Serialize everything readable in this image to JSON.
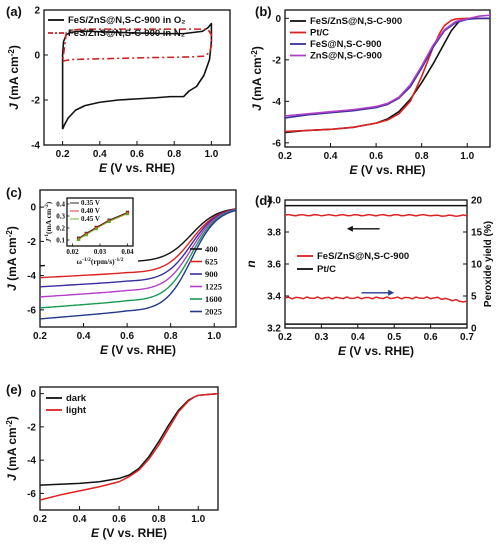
{
  "chart_data": [
    {
      "panel": "(a)",
      "type": "line",
      "xlabel_var": "E",
      "xlabel_rest": " (V vs. RHE)",
      "ylabel_var": "J",
      "ylabel_rest": " (mA cm",
      "ylabel_sup": "-2",
      "ylabel_end": ")",
      "xlim": [
        0.1,
        1.1
      ],
      "ylim": [
        -4,
        2
      ],
      "xticks": [
        0.2,
        0.4,
        0.6,
        0.8,
        1.0
      ],
      "xtick_labels": [
        "0.2",
        "0.4",
        "0.6",
        "0.8",
        "1.0"
      ],
      "yticks": [
        -4,
        -2,
        0,
        2
      ],
      "ytick_labels": [
        "-4",
        "-2",
        "0",
        "2"
      ],
      "legend_position": "top-left",
      "series": [
        {
          "name": "FeS/ZnS@N,S-C-900 in O₂",
          "color": "#111111",
          "style": "solid",
          "x": [
            0.2,
            0.21,
            0.23,
            0.27,
            0.32,
            0.4,
            0.5,
            0.6,
            0.7,
            0.78,
            0.85,
            0.88,
            0.92,
            0.96,
            0.99,
            1.0,
            1.0,
            0.98,
            0.95,
            0.9,
            0.85,
            0.75,
            0.6,
            0.45,
            0.35,
            0.28,
            0.24,
            0.22,
            0.205,
            0.2,
            0.2
          ],
          "y": [
            -3.3,
            -3.1,
            -2.8,
            -2.45,
            -2.25,
            -2.1,
            -2.0,
            -1.95,
            -1.9,
            -1.85,
            -1.85,
            -1.6,
            -1.4,
            -0.9,
            -0.2,
            0.6,
            1.4,
            1.2,
            1.05,
            1.0,
            0.95,
            0.95,
            0.98,
            1.02,
            1.05,
            1.05,
            1.0,
            0.9,
            0.6,
            0.0,
            -3.3
          ]
        },
        {
          "name": "FeS/ZnS@N,S-C-900 in N₂",
          "color": "#cc2222",
          "style": "dashdot",
          "x": [
            0.2,
            0.21,
            0.25,
            0.35,
            0.5,
            0.65,
            0.8,
            0.9,
            0.96,
            0.99,
            1.0,
            1.0,
            0.98,
            0.95,
            0.85,
            0.7,
            0.55,
            0.4,
            0.3,
            0.25,
            0.22,
            0.2
          ],
          "y": [
            -0.3,
            -0.25,
            -0.2,
            -0.18,
            -0.15,
            -0.12,
            -0.1,
            -0.08,
            -0.05,
            0.1,
            0.4,
            0.9,
            1.15,
            1.15,
            1.15,
            1.15,
            1.15,
            1.15,
            1.15,
            1.1,
            1.0,
            -0.3
          ]
        }
      ]
    },
    {
      "panel": "(b)",
      "type": "line",
      "xlabel_var": "E",
      "xlabel_rest": " (V vs. RHE)",
      "ylabel_var": "J",
      "ylabel_rest": " (mA cm",
      "ylabel_sup": "-2",
      "ylabel_end": ")",
      "xlim": [
        0.2,
        1.1
      ],
      "ylim": [
        -6.2,
        0.4
      ],
      "xticks": [
        0.2,
        0.4,
        0.6,
        0.8,
        1.0
      ],
      "xtick_labels": [
        "0.2",
        "0.4",
        "0.6",
        "0.8",
        "1.0"
      ],
      "yticks": [
        -6,
        -4,
        -2,
        0
      ],
      "ytick_labels": [
        "-6",
        "-4",
        "-2",
        "0"
      ],
      "legend_position": "top-left",
      "series": [
        {
          "name": "FeS/ZnS@N,S-C-900",
          "color": "#111111",
          "x": [
            0.2,
            0.3,
            0.4,
            0.5,
            0.6,
            0.65,
            0.7,
            0.75,
            0.8,
            0.85,
            0.9,
            0.93,
            0.96,
            0.98,
            1.0,
            1.05,
            1.1
          ],
          "y": [
            -5.5,
            -5.4,
            -5.35,
            -5.25,
            -5.05,
            -4.85,
            -4.5,
            -3.9,
            -3.1,
            -2.2,
            -1.2,
            -0.6,
            -0.2,
            -0.05,
            0.0,
            0.0,
            0.0
          ]
        },
        {
          "name": "Pt/C",
          "color": "#dd2222",
          "x": [
            0.2,
            0.3,
            0.4,
            0.5,
            0.6,
            0.65,
            0.7,
            0.75,
            0.8,
            0.85,
            0.88,
            0.9,
            0.93,
            0.95,
            1.0,
            1.05,
            1.1
          ],
          "y": [
            -5.45,
            -5.4,
            -5.35,
            -5.25,
            -5.05,
            -4.9,
            -4.6,
            -4.0,
            -2.8,
            -1.4,
            -0.7,
            -0.35,
            -0.1,
            -0.03,
            0.0,
            0.0,
            0.0
          ]
        },
        {
          "name": "FeS@N,S-C-900",
          "color": "#3b2f9e",
          "x": [
            0.2,
            0.3,
            0.4,
            0.5,
            0.6,
            0.65,
            0.7,
            0.75,
            0.8,
            0.85,
            0.9,
            0.95,
            1.0,
            1.05,
            1.1
          ],
          "y": [
            -4.8,
            -4.65,
            -4.55,
            -4.45,
            -4.3,
            -4.15,
            -3.85,
            -3.3,
            -2.4,
            -1.4,
            -0.6,
            -0.2,
            -0.05,
            0.0,
            0.0
          ]
        },
        {
          "name": "ZnS@N,S-C-900",
          "color": "#b040c8",
          "x": [
            0.2,
            0.3,
            0.4,
            0.5,
            0.6,
            0.65,
            0.7,
            0.75,
            0.8,
            0.85,
            0.9,
            0.95,
            1.0,
            1.05,
            1.1
          ],
          "y": [
            -4.7,
            -4.6,
            -4.5,
            -4.4,
            -4.25,
            -4.1,
            -3.8,
            -3.2,
            -2.3,
            -1.3,
            -0.55,
            -0.15,
            -0.02,
            0.1,
            0.15
          ]
        }
      ]
    },
    {
      "panel": "(c)",
      "type": "line",
      "xlabel_var": "E",
      "xlabel_rest": " (V vs. RHE)",
      "ylabel_var": "J",
      "ylabel_rest": " (mA cm",
      "ylabel_sup": "-2",
      "ylabel_end": ")",
      "xlim": [
        0.2,
        1.1
      ],
      "ylim": [
        -7,
        1
      ],
      "xticks": [
        0.2,
        0.4,
        0.6,
        0.8,
        1.0
      ],
      "xtick_labels": [
        "0.2",
        "0.4",
        "0.6",
        "0.8",
        "1.0"
      ],
      "yticks": [
        -6,
        -4,
        -2,
        0
      ],
      "ytick_labels": [
        "-6",
        "-4",
        "-2",
        "0"
      ],
      "legend_position": "bottom-right",
      "series": [
        {
          "name": "400",
          "color": "#111111",
          "plateau": -3.2
        },
        {
          "name": "625",
          "color": "#dd2222",
          "plateau": -3.85
        },
        {
          "name": "900",
          "color": "#3b2f9e",
          "plateau": -4.35
        },
        {
          "name": "1225",
          "color": "#b040c8",
          "plateau": -4.9
        },
        {
          "name": "1600",
          "color": "#1a9a55",
          "plateau": -5.5
        },
        {
          "name": "2025",
          "color": "#223a88",
          "plateau": -6.1
        }
      ],
      "inset": {
        "xlabel": "ω",
        "xlabel_sup": "-1/2",
        "xlabel_rest": "(rpm/s)",
        "xlabel_sup2": "-1/2",
        "ylabel": "J",
        "ylabel_sup": "-1",
        "ylabel_rest": "(mA cm",
        "ylabel_sup2": "-2",
        "ylabel_end": ")",
        "xlim": [
          0.018,
          0.042
        ],
        "ylim": [
          0.05,
          0.45
        ],
        "xticks": [
          0.02,
          0.03,
          0.04
        ],
        "xtick_labels": [
          "0.02",
          "0.03",
          "0.04"
        ],
        "yticks": [
          0.1,
          0.2,
          0.3,
          0.4
        ],
        "ytick_labels": [
          "0.1",
          "0.2",
          "0.3",
          "0.4"
        ],
        "series": [
          {
            "name": "0.35 V",
            "color": "#111111",
            "marker": "square",
            "x": [
              0.0222,
              0.025,
              0.0286,
              0.0333,
              0.04
            ],
            "y": [
              0.115,
              0.155,
              0.205,
              0.265,
              0.33
            ]
          },
          {
            "name": "0.40 V",
            "color": "#dd2222",
            "marker": "circle",
            "x": [
              0.0222,
              0.025,
              0.0286,
              0.0333,
              0.04
            ],
            "y": [
              0.11,
              0.15,
              0.2,
              0.26,
              0.325
            ]
          },
          {
            "name": "0.45 V",
            "color": "#66aa22",
            "marker": "triangle",
            "x": [
              0.0222,
              0.025,
              0.0286,
              0.0333,
              0.04
            ],
            "y": [
              0.105,
              0.145,
              0.195,
              0.255,
              0.32
            ]
          }
        ]
      }
    },
    {
      "panel": "(d)",
      "type": "line",
      "xlabel_var": "E",
      "xlabel_rest": " (V vs. RHE)",
      "ylabel_var": "n",
      "ylabel2": "Peroxide yield (%)",
      "xlim": [
        0.2,
        0.7
      ],
      "ylim": [
        3.2,
        4.0
      ],
      "y2lim": [
        0,
        20
      ],
      "xticks": [
        0.2,
        0.3,
        0.4,
        0.5,
        0.6,
        0.7
      ],
      "xtick_labels": [
        "0.2",
        "0.3",
        "0.4",
        "0.5",
        "0.6",
        "0.7"
      ],
      "yticks": [
        3.2,
        3.4,
        3.6,
        3.8,
        4.0
      ],
      "ytick_labels": [
        "3.2",
        "3.4",
        "3.6",
        "3.8",
        "4.0"
      ],
      "y2ticks": [
        0,
        5,
        10,
        15,
        20
      ],
      "y2tick_labels": [
        "0",
        "5",
        "10",
        "15",
        "20"
      ],
      "legend_position": "center-left",
      "series": [
        {
          "name": "FeS/ZnS@N,S-C-900",
          "color": "#dd2222",
          "n_value": 3.905,
          "peroxide": 4.7
        },
        {
          "name": "Pt/C",
          "color": "#111111",
          "n_value": 3.965,
          "peroxide": 0.6
        }
      ]
    },
    {
      "panel": "(e)",
      "type": "line",
      "xlabel_var": "E",
      "xlabel_rest": " (V vs. RHE)",
      "ylabel_var": "J",
      "ylabel_rest": " (mA cm",
      "ylabel_sup": "-2",
      "ylabel_end": ")",
      "xlim": [
        0.2,
        1.1
      ],
      "ylim": [
        -7,
        0.4
      ],
      "xticks": [
        0.2,
        0.4,
        0.6,
        0.8,
        1.0
      ],
      "xtick_labels": [
        "0.2",
        "0.4",
        "0.6",
        "0.8",
        "1.0"
      ],
      "yticks": [
        -6,
        -4,
        -2,
        0
      ],
      "ytick_labels": [
        "-6",
        "-4",
        "-2",
        "0"
      ],
      "legend_position": "top-left",
      "series": [
        {
          "name": "dark",
          "color": "#111111",
          "x": [
            0.2,
            0.3,
            0.4,
            0.5,
            0.6,
            0.65,
            0.7,
            0.75,
            0.8,
            0.85,
            0.9,
            0.95,
            0.98,
            1.0,
            1.05,
            1.1
          ],
          "y": [
            -5.5,
            -5.45,
            -5.4,
            -5.3,
            -5.1,
            -4.9,
            -4.5,
            -3.8,
            -2.9,
            -1.9,
            -1.0,
            -0.4,
            -0.2,
            -0.1,
            -0.05,
            0.0
          ]
        },
        {
          "name": "light",
          "color": "#dd2222",
          "x": [
            0.2,
            0.3,
            0.4,
            0.5,
            0.6,
            0.65,
            0.7,
            0.75,
            0.8,
            0.85,
            0.9,
            0.95,
            0.98,
            1.0,
            1.05,
            1.1
          ],
          "y": [
            -6.4,
            -6.1,
            -5.85,
            -5.6,
            -5.3,
            -5.0,
            -4.6,
            -3.95,
            -3.1,
            -2.1,
            -1.1,
            -0.45,
            -0.2,
            -0.1,
            -0.05,
            0.0
          ]
        }
      ]
    }
  ]
}
